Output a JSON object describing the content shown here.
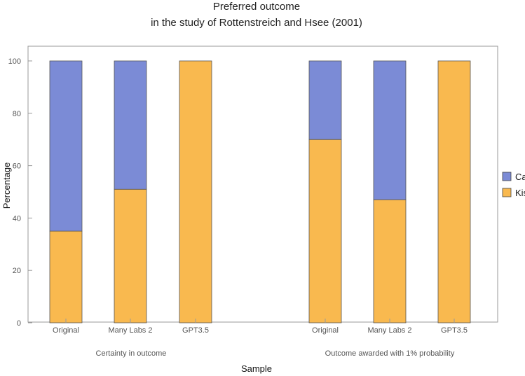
{
  "chart_data": {
    "type": "bar",
    "stacked": true,
    "title": [
      "Preferred outcome",
      "in the study of Rottenstreich and Hsee (2001)"
    ],
    "xlabel": "Sample",
    "ylabel": "Percentage",
    "ylim": [
      0,
      100
    ],
    "yticks": [
      "0",
      "20",
      "40",
      "60",
      "80",
      "100"
    ],
    "groups": [
      {
        "label": "Certainty in outcome",
        "categories": [
          "Original",
          "Many Labs 2",
          "GPT3.5"
        ],
        "kiss": [
          35,
          51,
          100
        ],
        "cash": [
          65,
          49,
          0
        ]
      },
      {
        "label": "Outcome awarded with 1% probability",
        "categories": [
          "Original",
          "Many Labs 2",
          "GPT3.5"
        ],
        "kiss": [
          70,
          47,
          100
        ],
        "cash": [
          30,
          53,
          0
        ]
      }
    ],
    "series": [
      {
        "name": "Cash",
        "color": "#7b8bd6"
      },
      {
        "name": "Kiss",
        "color": "#f9b94f"
      }
    ],
    "legend_position": "right"
  }
}
